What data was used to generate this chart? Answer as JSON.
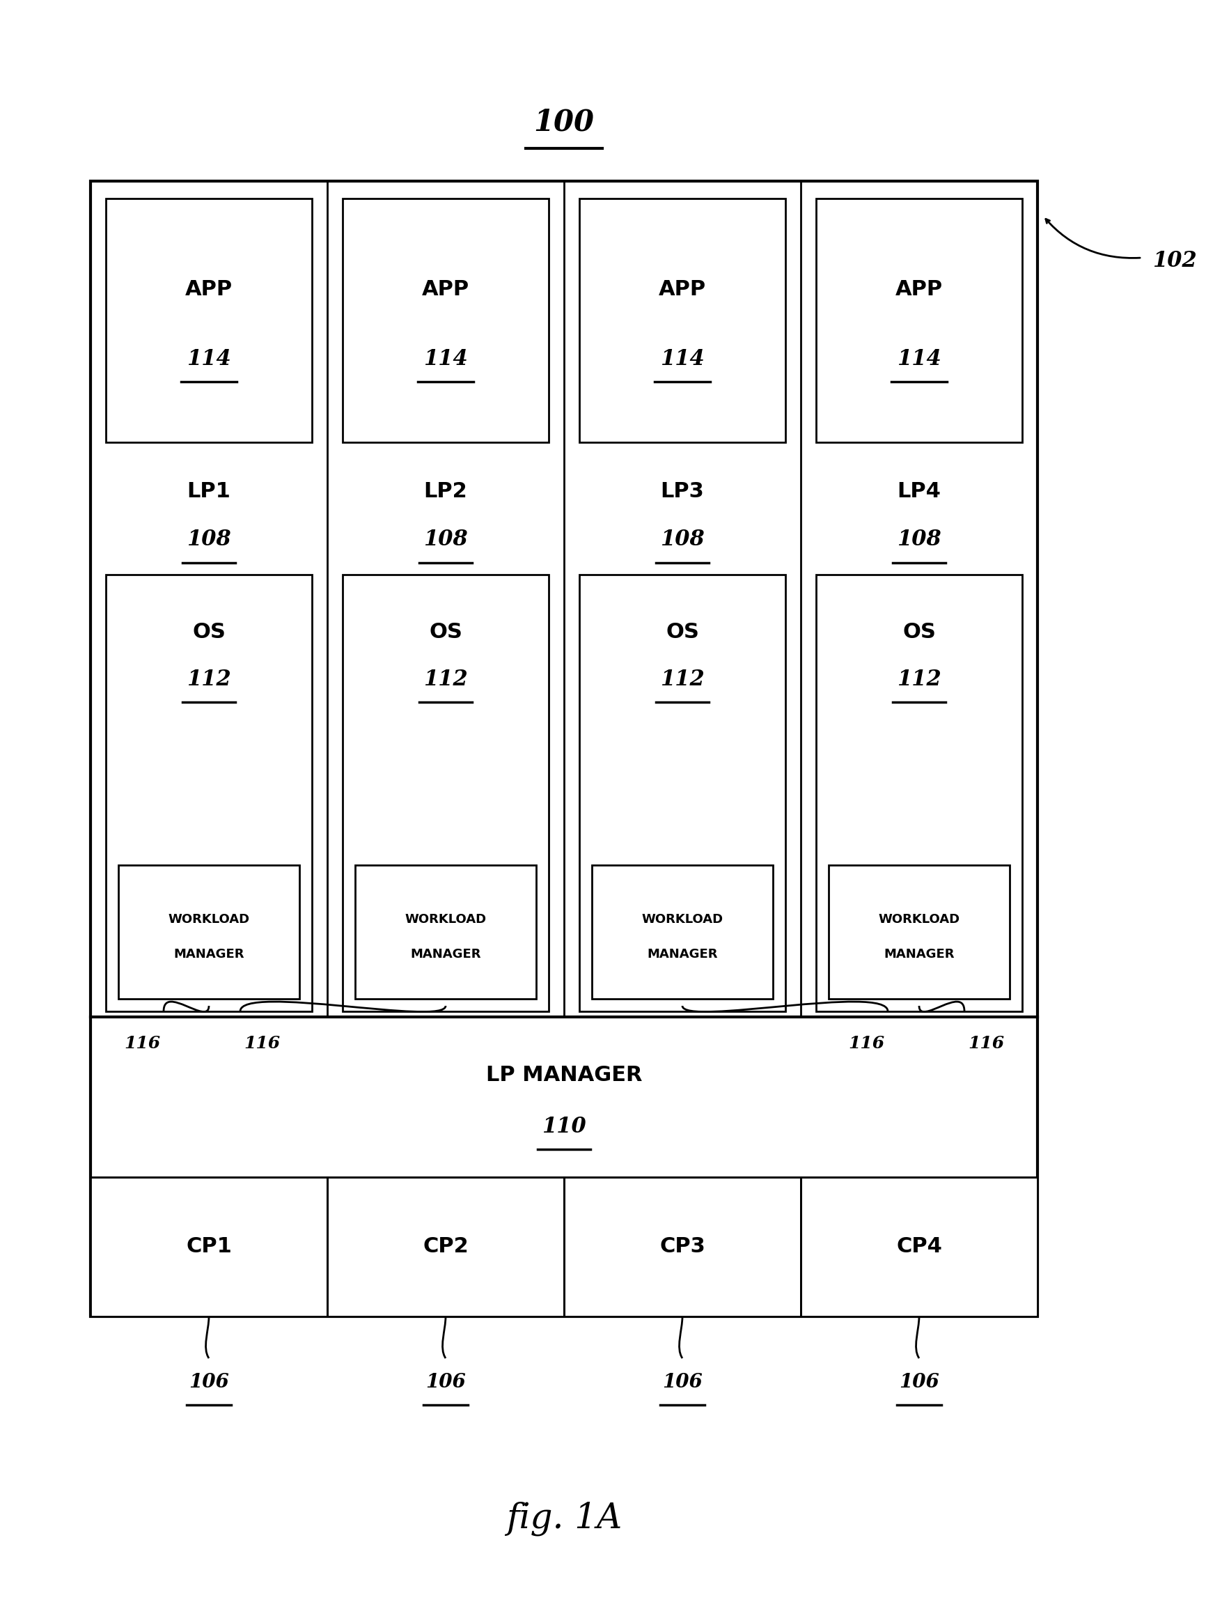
{
  "fig_label": "fig. 1A",
  "title_label": "100",
  "outer_box_label": "102",
  "columns": 4,
  "app_label": "APP",
  "app_num": "114",
  "lp_labels": [
    "LP1",
    "LP2",
    "LP3",
    "LP4"
  ],
  "lp_num": "108",
  "os_label": "OS",
  "os_num": "112",
  "wm_line1": "WORKLOAD",
  "wm_line2": "MANAGER",
  "cp_labels": [
    "CP1",
    "CP2",
    "CP3",
    "CP4"
  ],
  "cp_num": "106",
  "connection_num": "116",
  "lp_manager_line1": "LP MANAGER",
  "lp_manager_num": "110",
  "bg_color": "#ffffff",
  "box_color": "#000000",
  "text_color": "#000000"
}
